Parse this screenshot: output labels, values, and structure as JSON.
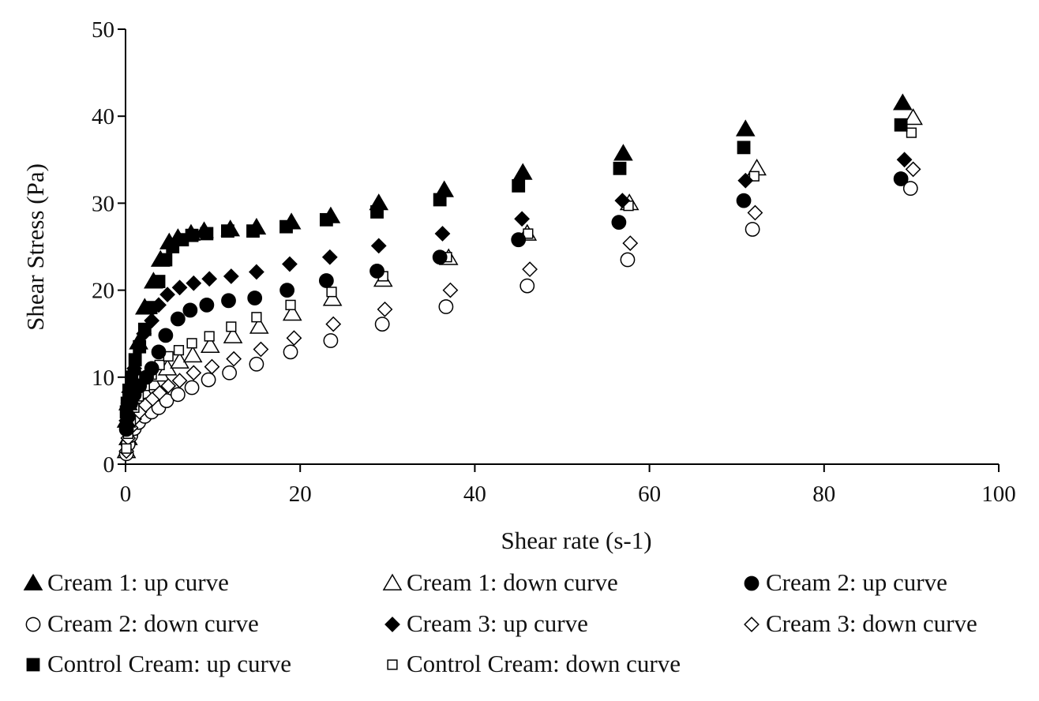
{
  "chart_data": {
    "type": "scatter",
    "title": "",
    "xlabel": "Shear rate (s-1)",
    "ylabel": "Shear Stress (Pa)",
    "xlim": [
      0,
      100
    ],
    "ylim": [
      0,
      50
    ],
    "xticks": [
      0,
      20,
      40,
      60,
      80,
      100
    ],
    "yticks": [
      0,
      10,
      20,
      30,
      40,
      50
    ],
    "grid": false,
    "legend_position": "bottom",
    "series": [
      {
        "name": "Cream 1: up curve",
        "marker": "triangle",
        "filled": true,
        "x": [
          0.1,
          0.3,
          0.6,
          1.0,
          1.5,
          2.2,
          3.2,
          4.0,
          5.0,
          6.0,
          7.5,
          9.0,
          12.0,
          15.0,
          19.0,
          23.5,
          29.0,
          36.5,
          45.5,
          57.0,
          71.0,
          89.0
        ],
        "y": [
          5.0,
          7.0,
          9.0,
          11.0,
          14.0,
          18.0,
          21.0,
          23.5,
          25.5,
          26.0,
          26.5,
          26.8,
          27.0,
          27.2,
          27.8,
          28.5,
          30.0,
          31.5,
          33.5,
          35.7,
          38.5,
          41.5
        ]
      },
      {
        "name": "Cream 1: down curve",
        "marker": "triangle",
        "filled": false,
        "x": [
          0.1,
          0.3,
          0.6,
          1.0,
          1.5,
          2.2,
          3.2,
          4.0,
          4.8,
          6.2,
          7.7,
          9.7,
          12.3,
          15.3,
          19.1,
          23.7,
          29.5,
          37.0,
          46.0,
          57.7,
          72.3,
          90.2
        ],
        "y": [
          1.5,
          3.0,
          4.5,
          5.8,
          7.0,
          8.3,
          9.3,
          10.3,
          11.0,
          11.8,
          12.5,
          13.6,
          14.7,
          15.8,
          17.3,
          19.0,
          21.2,
          23.7,
          26.5,
          30.0,
          34.0,
          39.8
        ]
      },
      {
        "name": "Cream 2: up curve",
        "marker": "circle",
        "filled": true,
        "x": [
          0.1,
          0.3,
          0.6,
          1.0,
          1.6,
          2.4,
          3.0,
          3.8,
          4.6,
          6.0,
          7.4,
          9.3,
          11.8,
          14.8,
          18.5,
          23.0,
          28.8,
          36.0,
          45.0,
          56.5,
          70.8,
          88.8
        ],
        "y": [
          4.0,
          5.5,
          7.0,
          8.0,
          9.0,
          10.0,
          11.0,
          12.9,
          14.8,
          16.7,
          17.7,
          18.3,
          18.8,
          19.1,
          20.0,
          21.1,
          22.2,
          23.8,
          25.8,
          27.8,
          30.3,
          32.8
        ]
      },
      {
        "name": "Cream 2: down curve",
        "marker": "circle",
        "filled": false,
        "x": [
          0.1,
          0.3,
          0.6,
          1.0,
          1.5,
          2.2,
          3.0,
          3.8,
          4.7,
          6.0,
          7.6,
          9.5,
          11.9,
          15.0,
          18.9,
          23.5,
          29.4,
          36.7,
          46.0,
          57.5,
          71.8,
          89.9
        ],
        "y": [
          1.2,
          2.3,
          3.3,
          4.1,
          4.8,
          5.5,
          6.0,
          6.5,
          7.3,
          8.0,
          8.8,
          9.7,
          10.5,
          11.5,
          12.9,
          14.2,
          16.1,
          18.1,
          20.5,
          23.5,
          27.0,
          31.7
        ]
      },
      {
        "name": "Cream 3: up curve",
        "marker": "diamond",
        "filled": true,
        "x": [
          0.1,
          0.3,
          0.6,
          1.0,
          1.5,
          2.1,
          3.0,
          3.8,
          4.8,
          6.2,
          7.8,
          9.6,
          12.1,
          15.0,
          18.8,
          23.4,
          29.0,
          36.3,
          45.4,
          56.9,
          71.0,
          89.2
        ],
        "y": [
          5.0,
          7.0,
          9.0,
          11.0,
          13.5,
          15.0,
          16.5,
          18.3,
          19.5,
          20.3,
          20.8,
          21.3,
          21.6,
          22.1,
          23.0,
          23.8,
          25.1,
          26.5,
          28.2,
          30.3,
          32.6,
          35.0
        ]
      },
      {
        "name": "Cream 3: down curve",
        "marker": "diamond",
        "filled": false,
        "x": [
          0.1,
          0.3,
          0.6,
          1.0,
          1.6,
          2.3,
          3.1,
          3.9,
          4.9,
          6.2,
          7.8,
          9.9,
          12.4,
          15.5,
          19.3,
          23.8,
          29.7,
          37.2,
          46.3,
          57.8,
          72.1,
          90.2
        ],
        "y": [
          1.5,
          3.0,
          4.2,
          5.2,
          6.0,
          6.8,
          7.5,
          8.2,
          9.0,
          9.6,
          10.5,
          11.2,
          12.1,
          13.2,
          14.5,
          16.1,
          17.8,
          20.0,
          22.4,
          25.4,
          28.9,
          33.9
        ]
      },
      {
        "name": "Control Cream: up curve",
        "marker": "square",
        "filled": true,
        "x": [
          0.1,
          0.2,
          0.4,
          0.7,
          1.1,
          1.6,
          2.2,
          2.9,
          3.8,
          4.6,
          5.4,
          6.5,
          7.6,
          9.3,
          11.7,
          14.6,
          18.4,
          23.0,
          28.8,
          36.0,
          45.0,
          56.6,
          70.8,
          88.8
        ],
        "y": [
          6.0,
          7.0,
          8.5,
          10.0,
          12.0,
          13.5,
          15.5,
          18.0,
          21.0,
          23.5,
          25.0,
          25.8,
          26.3,
          26.5,
          26.8,
          26.8,
          27.3,
          28.1,
          29.0,
          30.4,
          32.0,
          34.0,
          36.4,
          39.0
        ]
      },
      {
        "name": "Control Cream: down curve",
        "marker": "square",
        "filled": false,
        "x": [
          0.1,
          0.3,
          0.6,
          1.0,
          1.5,
          2.2,
          3.0,
          3.9,
          4.9,
          6.1,
          7.6,
          9.6,
          12.1,
          15.0,
          18.9,
          23.6,
          29.5,
          36.8,
          46.1,
          57.6,
          72.0,
          90.0
        ],
        "y": [
          1.8,
          3.5,
          5.0,
          6.5,
          7.8,
          9.0,
          10.3,
          11.4,
          12.4,
          13.1,
          13.9,
          14.7,
          15.8,
          16.9,
          18.3,
          19.8,
          21.6,
          23.8,
          26.5,
          29.7,
          33.1,
          38.1
        ]
      }
    ]
  }
}
